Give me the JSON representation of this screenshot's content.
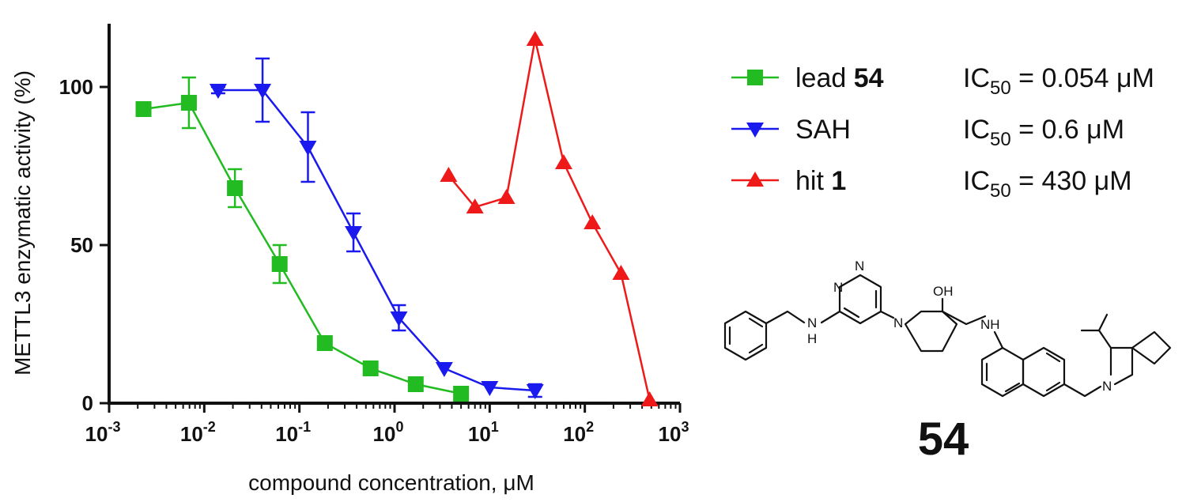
{
  "chart_data": {
    "type": "scatter",
    "xlabel": "compound concentration, μM",
    "ylabel": "METTL3 enzymatic activity (%)",
    "xscale": "log",
    "xlim": [
      0.001,
      1000
    ],
    "ylim": [
      0,
      120
    ],
    "x_ticks": [
      {
        "base": "10",
        "exp": "-3"
      },
      {
        "base": "10",
        "exp": "-2"
      },
      {
        "base": "10",
        "exp": "-1"
      },
      {
        "base": "10",
        "exp": "0"
      },
      {
        "base": "10",
        "exp": "1"
      },
      {
        "base": "10",
        "exp": "2"
      },
      {
        "base": "10",
        "exp": "3"
      }
    ],
    "y_ticks": [
      "0",
      "50",
      "100"
    ],
    "y_tick_values": [
      0,
      50,
      100
    ],
    "legend_position": "right",
    "series": [
      {
        "name_prefix": "lead ",
        "name_bold": "54",
        "ic50_label": "IC",
        "ic50_sub": "50",
        "ic50_value": " = 0.054 μM",
        "color": "#22bb22",
        "marker": "square",
        "x": [
          0.0023,
          0.0069,
          0.021,
          0.062,
          0.185,
          0.56,
          1.67,
          5.0
        ],
        "y": [
          93,
          95,
          68,
          44,
          19,
          11,
          6,
          3
        ],
        "err": [
          0,
          8,
          6,
          6,
          2,
          0,
          0,
          0
        ]
      },
      {
        "name_prefix": "SAH",
        "name_bold": "",
        "ic50_label": "IC",
        "ic50_sub": "50",
        "ic50_value": " = 0.6 μM",
        "color": "#1a1aee",
        "marker": "triangle-down",
        "x": [
          0.014,
          0.041,
          0.123,
          0.37,
          1.11,
          3.33,
          10,
          30
        ],
        "y": [
          99,
          99,
          81,
          54,
          27,
          11,
          5,
          4
        ],
        "err": [
          1,
          10,
          11,
          6,
          4,
          0,
          0,
          2
        ]
      },
      {
        "name_prefix": "hit ",
        "name_bold": "1",
        "ic50_label": "IC",
        "ic50_sub": "50",
        "ic50_value": " = 430 μM",
        "color": "#ee1a1a",
        "marker": "triangle-up",
        "x": [
          3.7,
          7.0,
          15,
          30,
          60,
          120,
          240,
          480
        ],
        "y": [
          72,
          62,
          65,
          115,
          76,
          57,
          41,
          1
        ],
        "err": [
          0,
          0,
          0,
          0,
          0,
          0,
          0,
          0
        ]
      }
    ]
  },
  "structure": {
    "compound_label": "54",
    "atoms": {
      "N": "N",
      "NH": "NH",
      "H": "H",
      "OH": "OH"
    }
  }
}
